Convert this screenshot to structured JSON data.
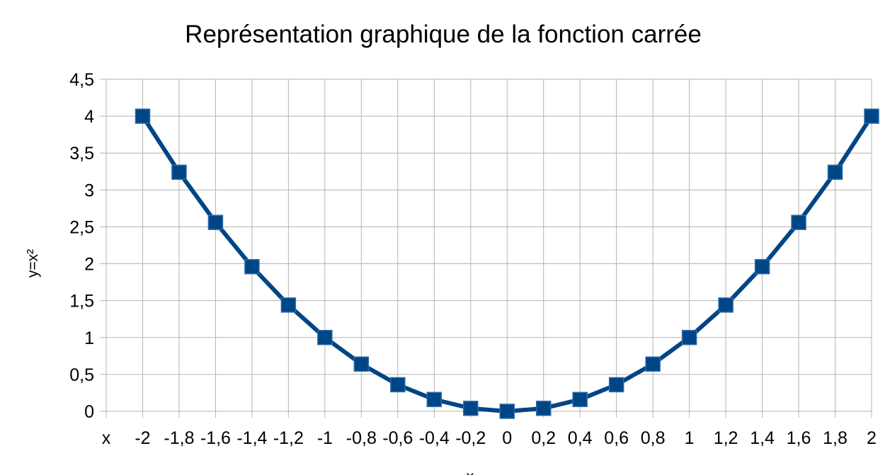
{
  "chart_data": {
    "type": "line",
    "title": "Représentation graphique de la fonction carrée",
    "xlabel": "x",
    "ylabel": "y=x²",
    "categories": [
      "x",
      "-2",
      "-1,8",
      "-1,6",
      "-1,4",
      "-1,2",
      "-1",
      "-0,8",
      "-0,6",
      "-0,4",
      "-0,2",
      "0",
      "0,2",
      "0,4",
      "0,6",
      "0,8",
      "1",
      "1,2",
      "1,4",
      "1,6",
      "1,8",
      "2"
    ],
    "series": [
      {
        "values": [
          null,
          4,
          3.24,
          2.56,
          1.96,
          1.44,
          1,
          0.64,
          0.36,
          0.16,
          0.04,
          0,
          0.04,
          0.16,
          0.36,
          0.64,
          1,
          1.44,
          1.96,
          2.56,
          3.24,
          4
        ],
        "color": "#004586"
      }
    ],
    "ylim": [
      0,
      4.5
    ],
    "yticks": [
      "0",
      "0,5",
      "1",
      "1,5",
      "2",
      "2,5",
      "3",
      "3,5",
      "4",
      "4,5"
    ],
    "grid": true,
    "marker": "square",
    "legend": "none"
  }
}
